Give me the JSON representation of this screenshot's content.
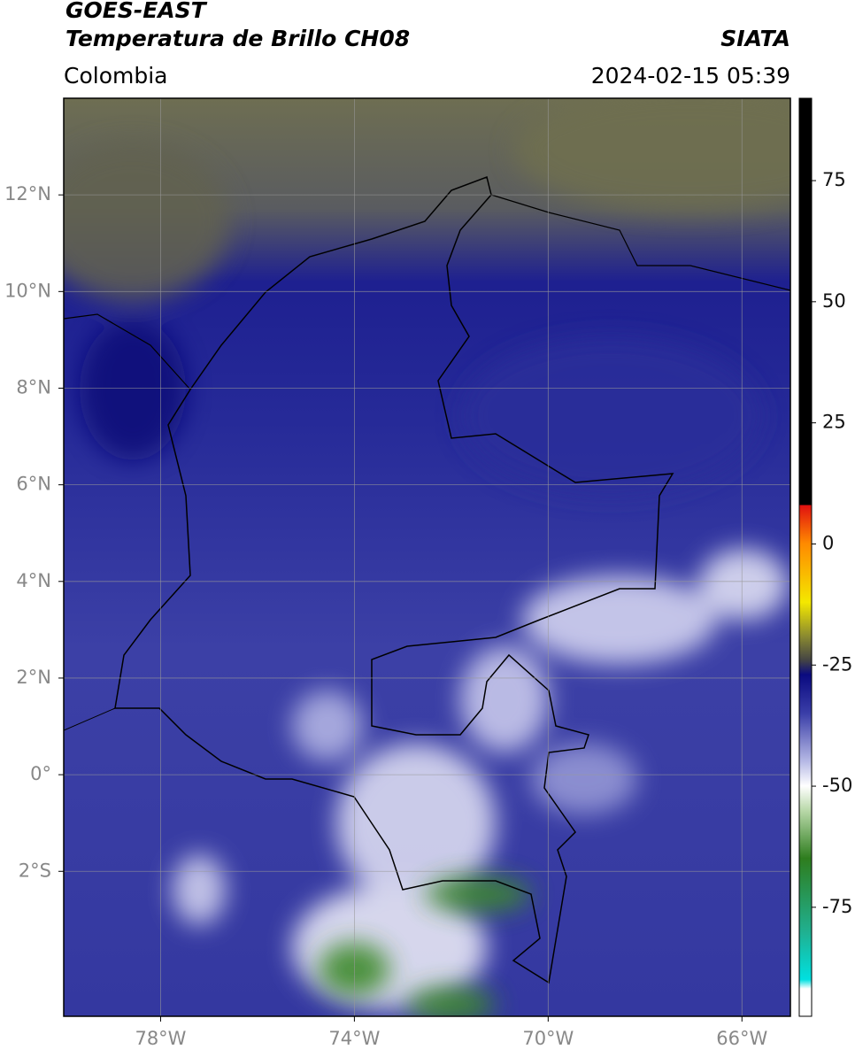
{
  "header": {
    "title": "GOES-EAST",
    "subtitle": "Temperatura de Brillo CH08",
    "source": "SIATA",
    "region": "Colombia",
    "timestamp": "2024-02-15 05:39"
  },
  "map": {
    "xlim": [
      -80,
      -65
    ],
    "ylim": [
      -5,
      14
    ],
    "xticks": [
      {
        "value": -78,
        "label": "78°W"
      },
      {
        "value": -74,
        "label": "74°W"
      },
      {
        "value": -70,
        "label": "70°W"
      },
      {
        "value": -66,
        "label": "66°W"
      }
    ],
    "yticks": [
      {
        "value": 12,
        "label": "12°N"
      },
      {
        "value": 10,
        "label": "10°N"
      },
      {
        "value": 8,
        "label": "8°N"
      },
      {
        "value": 6,
        "label": "6°N"
      },
      {
        "value": 4,
        "label": "4°N"
      },
      {
        "value": 2,
        "label": "2°N"
      },
      {
        "value": 0,
        "label": "0°"
      },
      {
        "value": -2,
        "label": "2°S"
      }
    ],
    "grid": true
  },
  "colorbar": {
    "clim": [
      -97.5,
      92
    ],
    "ticks": [
      75,
      50,
      25,
      0,
      -25,
      -50,
      -75
    ]
  }
}
